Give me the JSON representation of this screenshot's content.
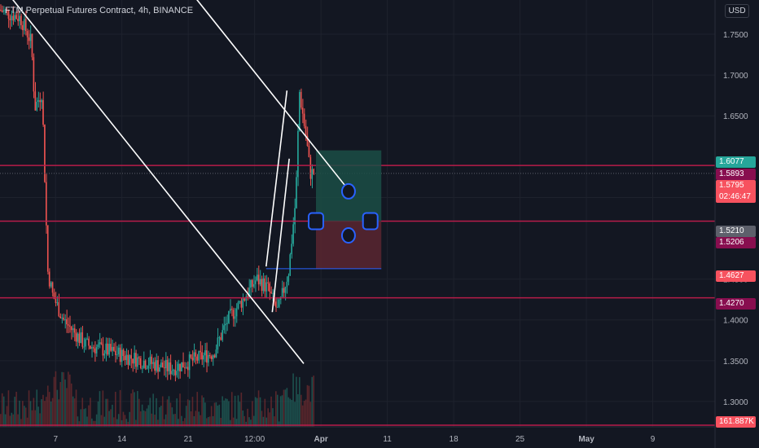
{
  "title": "FTM Perpetual Futures Contract, 4h, BINANCE",
  "currency": "USD",
  "colors": {
    "background": "#131722",
    "up": "#26a69a",
    "down": "#ef5350",
    "trendline": "#ffffff",
    "level_line": "#b71c4a",
    "position_profit": "#1b4d45",
    "position_loss": "#5b2630",
    "handle": "#2962ff"
  },
  "chart_data": {
    "type": "candlestick",
    "symbol": "FTM Perpetual Futures Contract",
    "interval": "4h",
    "exchange": "BINANCE",
    "x_tick_labels": [
      "7",
      "14",
      "21",
      "12:00",
      "Apr",
      "11",
      "18",
      "25",
      "May",
      "9"
    ],
    "y_tick_labels": [
      "1.7500",
      "1.7000",
      "1.6500",
      "1.5500",
      "1.4500",
      "1.4000",
      "1.3500",
      "1.3000"
    ],
    "ylim": [
      1.275,
      1.8
    ],
    "price_tags": [
      {
        "label": "1.6077",
        "color": "#26a69a"
      },
      {
        "label": "1.5893",
        "color": "#880e4f"
      },
      {
        "label": "1.5795",
        "sublabel": "02:46:47",
        "color": "#f7525f"
      },
      {
        "label": "1.5210",
        "color": "#5d606b"
      },
      {
        "label": "1.5206",
        "color": "#880e4f"
      },
      {
        "label": "1.4627",
        "color": "#f7525f"
      },
      {
        "label": "1.4270",
        "color": "#880e4f"
      },
      {
        "label": "161.887K",
        "color": "#f7525f"
      }
    ],
    "horizontal_levels": [
      1.5893,
      1.521,
      1.427
    ],
    "long_position": {
      "entry": 1.521,
      "target": 1.6077,
      "stop": 1.4627
    },
    "last_price": 1.5795,
    "countdown": "02:46:47",
    "volume_last": "161.887K",
    "trendlines": [
      {
        "from": [
          0.0,
          1.812
        ],
        "to": [
          0.4248,
          1.3465
        ]
      },
      {
        "from": [
          0.2575,
          1.812
        ],
        "to": [
          0.4936,
          1.5525
        ]
      },
      {
        "from": [
          0.3722,
          1.4655
        ],
        "to": [
          0.4013,
          1.681
        ]
      },
      {
        "from": [
          0.3808,
          1.4095
        ],
        "to": [
          0.4045,
          1.5975
        ]
      }
    ]
  }
}
